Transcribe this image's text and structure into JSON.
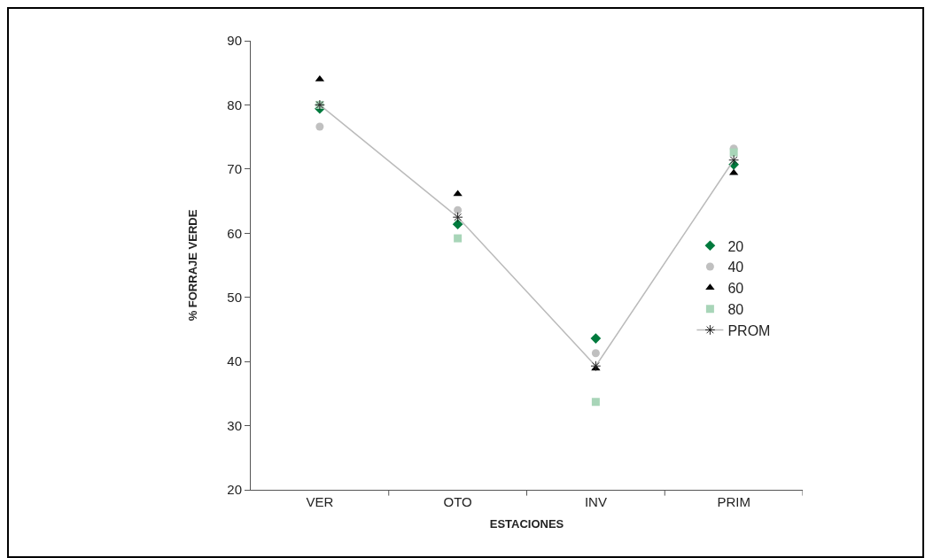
{
  "chart_data": {
    "type": "scatter",
    "xlabel": "ESTACIONES",
    "ylabel": "% FORRAJE VERDE",
    "categories": [
      "VER",
      "OTO",
      "INV",
      "PRIM"
    ],
    "series": [
      {
        "name": "20",
        "color": "#007a3d",
        "marker": "diamond",
        "values": [
          79.4,
          61.4,
          43.6,
          70.7
        ]
      },
      {
        "name": "40",
        "color": "#c0c0c0",
        "marker": "circle",
        "values": [
          76.6,
          63.6,
          41.3,
          73.2
        ]
      },
      {
        "name": "60",
        "color": "#000000",
        "marker": "triangle",
        "values": [
          84,
          66.1,
          38.9,
          69.4
        ]
      },
      {
        "name": "80",
        "color": "#a8d5b8",
        "marker": "square",
        "values": [
          80,
          59.2,
          33.7,
          72.6
        ]
      },
      {
        "name": "PROM",
        "type": "line",
        "color": "#bbbbbb",
        "marker": "cross",
        "values": [
          80,
          62.5,
          39.3,
          71.4
        ]
      }
    ],
    "ylim": [
      20,
      90
    ],
    "yticks": [
      20,
      30,
      40,
      50,
      60,
      70,
      80,
      90
    ],
    "grid": false,
    "legend": "right"
  }
}
